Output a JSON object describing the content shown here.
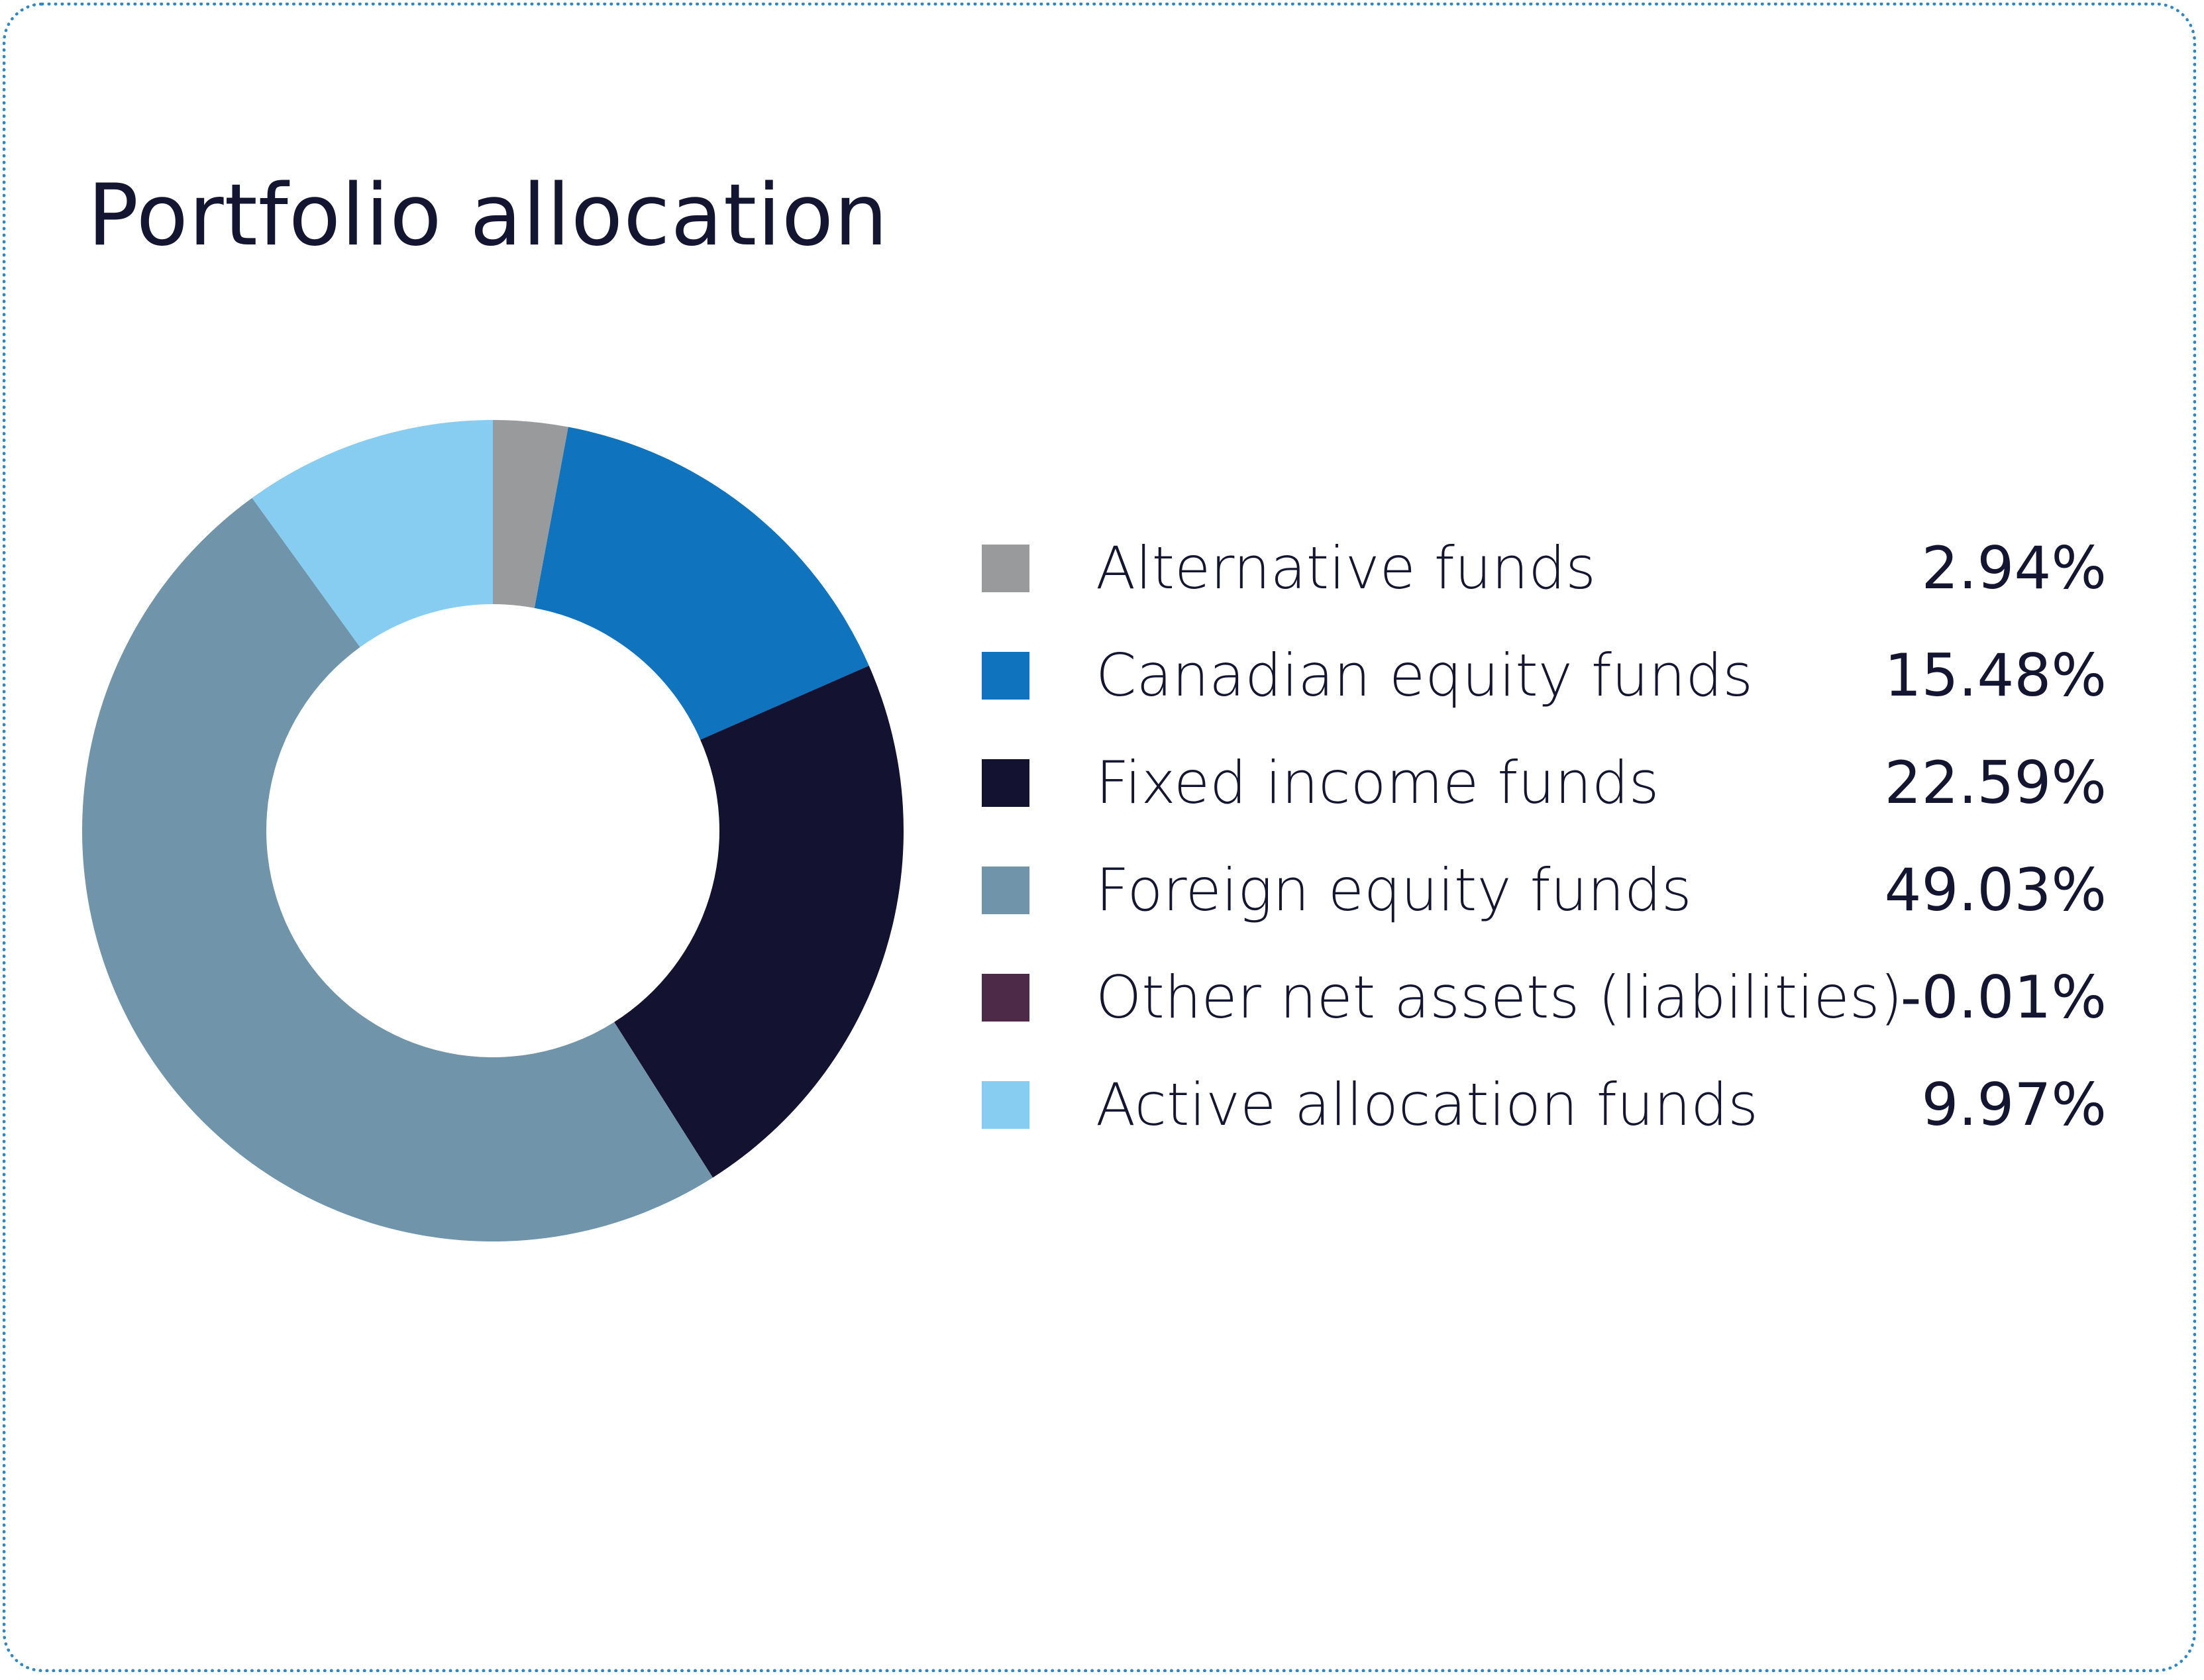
{
  "chart_data": {
    "type": "pie",
    "donut": true,
    "title": "Portfolio allocation",
    "legend_placement": "right",
    "categories": [
      "Alternative funds",
      "Canadian equity funds",
      "Fixed income funds",
      "Foreign equity funds",
      "Other net assets (liabilities)",
      "Active allocation funds"
    ],
    "values": [
      2.94,
      15.48,
      22.59,
      49.03,
      -0.01,
      9.97
    ],
    "value_labels": [
      "2.94%",
      "15.48%",
      "22.59%",
      "49.03%",
      "-0.01%",
      "9.97%"
    ],
    "colors": [
      "#999a9c",
      "#0f73bd",
      "#141231",
      "#7095aa",
      "#4d2a48",
      "#87cdf2"
    ]
  }
}
